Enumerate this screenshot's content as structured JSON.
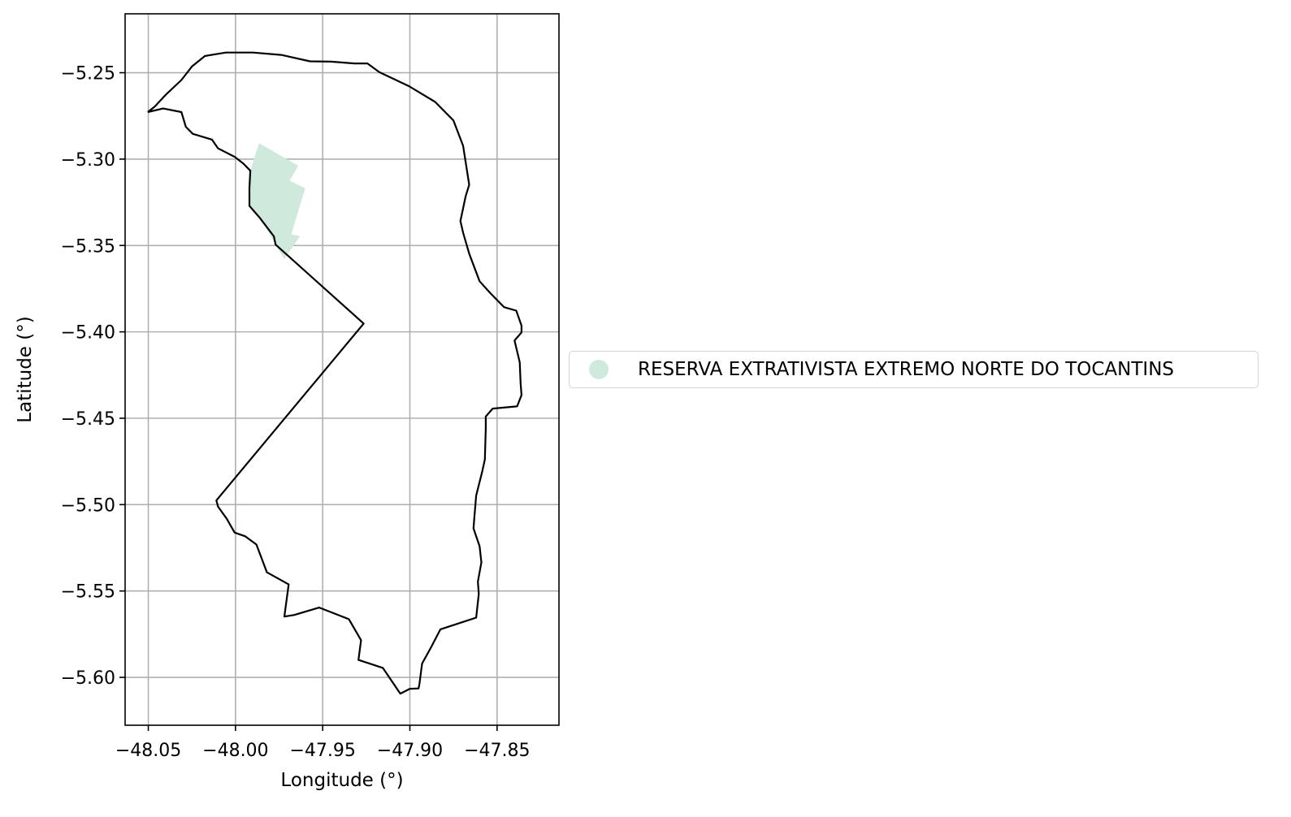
{
  "chart_data": {
    "type": "map",
    "xlabel": "Longitude (°)",
    "ylabel": "Latitude (°)",
    "xlim": [
      -48.0633,
      -47.8145
    ],
    "ylim": [
      -5.6277,
      -5.2159
    ],
    "grid": true,
    "xticks": [
      -48.05,
      -48.0,
      -47.95,
      -47.9,
      -47.85
    ],
    "xtick_labels": [
      "−48.05",
      "−48.00",
      "−47.95",
      "−47.90",
      "−47.85"
    ],
    "yticks": [
      -5.25,
      -5.3,
      -5.35,
      -5.4,
      -5.45,
      -5.5,
      -5.55,
      -5.6
    ],
    "ytick_labels": [
      "−5.25",
      "−5.30",
      "−5.35",
      "−5.40",
      "−5.45",
      "−5.50",
      "−5.55",
      "−5.60"
    ],
    "legend_position": "right",
    "layers": [
      {
        "kind": "outline",
        "color": "#000000",
        "coords": [
          [
            -48.0503,
            -5.2728
          ],
          [
            -48.0463,
            -5.2696
          ],
          [
            -48.0398,
            -5.2626
          ],
          [
            -48.031,
            -5.2542
          ],
          [
            -48.025,
            -5.2464
          ],
          [
            -48.0175,
            -5.2403
          ],
          [
            -48.0055,
            -5.2383
          ],
          [
            -47.99,
            -5.2383
          ],
          [
            -47.9738,
            -5.2397
          ],
          [
            -47.9573,
            -5.2434
          ],
          [
            -47.9452,
            -5.2436
          ],
          [
            -47.9318,
            -5.2446
          ],
          [
            -47.9243,
            -5.2446
          ],
          [
            -47.9175,
            -5.2497
          ],
          [
            -47.9005,
            -5.2578
          ],
          [
            -47.8855,
            -5.2669
          ],
          [
            -47.875,
            -5.2776
          ],
          [
            -47.8695,
            -5.2923
          ],
          [
            -47.868,
            -5.3019
          ],
          [
            -47.866,
            -5.3149
          ],
          [
            -47.868,
            -5.3214
          ],
          [
            -47.871,
            -5.3358
          ],
          [
            -47.8695,
            -5.3426
          ],
          [
            -47.866,
            -5.3547
          ],
          [
            -47.86,
            -5.3707
          ],
          [
            -47.854,
            -5.3774
          ],
          [
            -47.846,
            -5.3857
          ],
          [
            -47.839,
            -5.3877
          ],
          [
            -47.836,
            -5.3964
          ],
          [
            -47.836,
            -5.4003
          ],
          [
            -47.84,
            -5.405
          ],
          [
            -47.837,
            -5.4176
          ],
          [
            -47.8365,
            -5.4299
          ],
          [
            -47.836,
            -5.4366
          ],
          [
            -47.8385,
            -5.4431
          ],
          [
            -47.8525,
            -5.4444
          ],
          [
            -47.8565,
            -5.449
          ],
          [
            -47.8565,
            -5.456
          ],
          [
            -47.857,
            -5.4738
          ],
          [
            -47.8585,
            -5.4807
          ],
          [
            -47.862,
            -5.4947
          ],
          [
            -47.863,
            -5.5071
          ],
          [
            -47.8635,
            -5.5138
          ],
          [
            -47.86,
            -5.5241
          ],
          [
            -47.859,
            -5.5334
          ],
          [
            -47.861,
            -5.5446
          ],
          [
            -47.8605,
            -5.5517
          ],
          [
            -47.862,
            -5.5654
          ],
          [
            -47.8825,
            -5.5722
          ],
          [
            -47.888,
            -5.5829
          ],
          [
            -47.893,
            -5.592
          ],
          [
            -47.8945,
            -5.6037
          ],
          [
            -47.895,
            -5.6064
          ],
          [
            -47.9,
            -5.6066
          ],
          [
            -47.9055,
            -5.6094
          ],
          [
            -47.9155,
            -5.5945
          ],
          [
            -47.9295,
            -5.5899
          ],
          [
            -47.928,
            -5.5785
          ],
          [
            -47.935,
            -5.5663
          ],
          [
            -47.952,
            -5.5596
          ],
          [
            -47.9665,
            -5.5639
          ],
          [
            -47.972,
            -5.5648
          ],
          [
            -47.9695,
            -5.5462
          ],
          [
            -47.982,
            -5.5392
          ],
          [
            -47.988,
            -5.5231
          ],
          [
            -47.9945,
            -5.5183
          ],
          [
            -48.0005,
            -5.5162
          ],
          [
            -48.005,
            -5.5082
          ],
          [
            -48.01,
            -5.5012
          ],
          [
            -48.011,
            -5.4976
          ],
          [
            -47.9265,
            -5.3952
          ],
          [
            -47.977,
            -5.3495
          ],
          [
            -47.978,
            -5.3447
          ],
          [
            -47.986,
            -5.3341
          ],
          [
            -47.992,
            -5.3271
          ],
          [
            -47.992,
            -5.3168
          ],
          [
            -47.9915,
            -5.3067
          ],
          [
            -47.9955,
            -5.3026
          ],
          [
            -48.0005,
            -5.2987
          ],
          [
            -48.01,
            -5.2938
          ],
          [
            -48.0135,
            -5.2887
          ],
          [
            -48.0245,
            -5.2854
          ],
          [
            -48.0285,
            -5.2813
          ],
          [
            -48.031,
            -5.2728
          ],
          [
            -48.0415,
            -5.2707
          ],
          [
            -48.0503,
            -5.2728
          ]
        ]
      },
      {
        "kind": "polygon",
        "name": "RESERVA EXTRATIVISTA EXTREMO NORTE DO TOCANTINS",
        "color": "#cfeadd",
        "coords": [
          [
            -47.9865,
            -5.2908
          ],
          [
            -47.964,
            -5.3038
          ],
          [
            -47.969,
            -5.3125
          ],
          [
            -47.96,
            -5.3168
          ],
          [
            -47.968,
            -5.3436
          ],
          [
            -47.963,
            -5.3445
          ],
          [
            -47.972,
            -5.358
          ],
          [
            -47.986,
            -5.3341
          ],
          [
            -47.992,
            -5.3271
          ],
          [
            -47.992,
            -5.3168
          ],
          [
            -47.9915,
            -5.3067
          ],
          [
            -47.9865,
            -5.2908
          ]
        ]
      }
    ]
  }
}
